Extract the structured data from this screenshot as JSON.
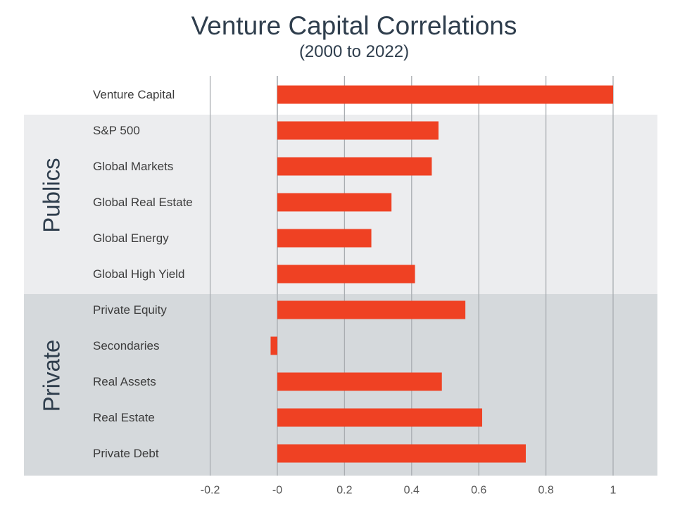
{
  "chart_data": {
    "type": "bar",
    "orientation": "horizontal",
    "title": "Venture Capital Correlations",
    "subtitle": "(2000 to 2022)",
    "categories": [
      "Venture Capital",
      "S&P 500",
      "Global Markets",
      "Global Real Estate",
      "Global Energy",
      "Global High Yield",
      "Private Equity",
      "Secondaries",
      "Real Assets",
      "Real Estate",
      "Private Debt"
    ],
    "values": [
      1.0,
      0.48,
      0.46,
      0.34,
      0.28,
      0.41,
      0.56,
      -0.02,
      0.49,
      0.61,
      0.74
    ],
    "xlim": [
      -0.2,
      1.0
    ],
    "x_ticks": [
      -0.2,
      0,
      0.2,
      0.4,
      0.6,
      0.8,
      1.0
    ],
    "x_tick_labels": [
      "-0.2",
      "-0",
      "0.2",
      "0.4",
      "0.6",
      "0.8",
      "1"
    ],
    "grid": true,
    "groups": [
      {
        "label": "Publics",
        "categories": [
          "S&P 500",
          "Global Markets",
          "Global Real Estate",
          "Global Energy",
          "Global High Yield"
        ],
        "color": "#ecedef"
      },
      {
        "label": "Private",
        "categories": [
          "Private Equity",
          "Secondaries",
          "Real Assets",
          "Real Estate",
          "Private Debt"
        ],
        "color": "#d5d9dc"
      }
    ],
    "bar_color": "#ef4123"
  }
}
